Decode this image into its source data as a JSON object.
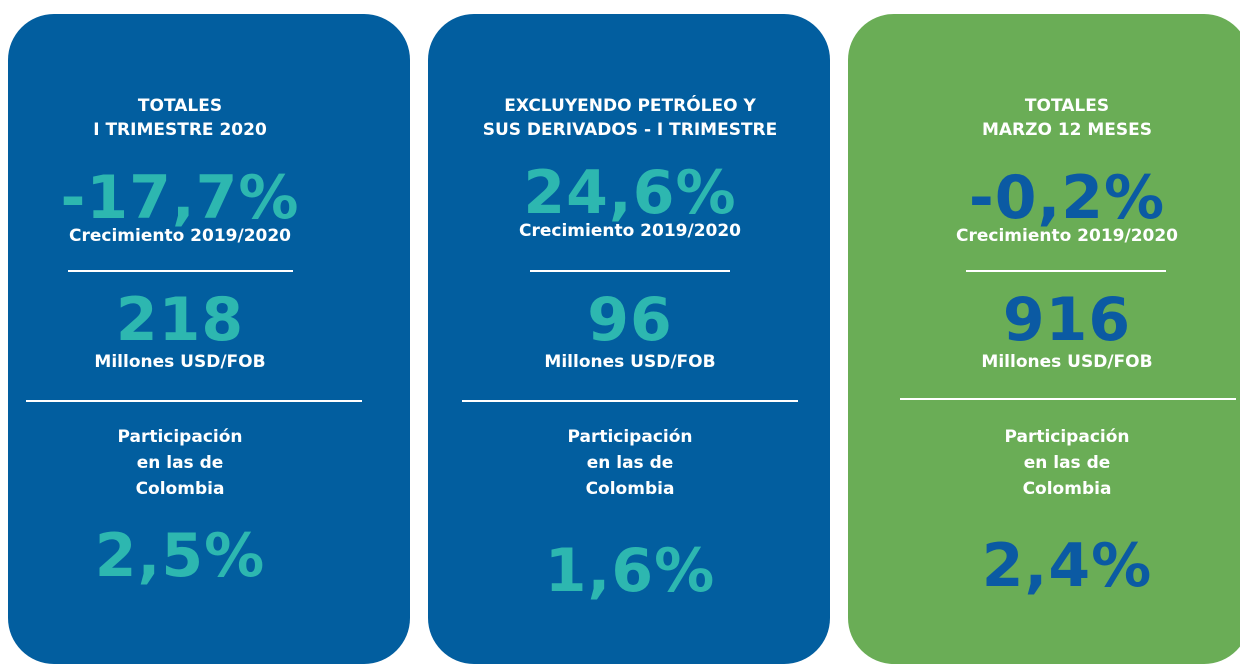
{
  "cards": [
    {
      "title": [
        "TOTALES",
        "I TRIMESTRE 2020"
      ],
      "growth": "-17,7%",
      "growth_label": "Crecimiento 2019/2020",
      "amount": "218",
      "amount_label": "Millones USD/FOB",
      "share_label": [
        "Participación",
        "en las de",
        "Colombia"
      ],
      "share": "2,5%"
    },
    {
      "title": [
        "EXCLUYENDO PETRÓLEO Y",
        "SUS DERIVADOS - I TRIMESTRE"
      ],
      "growth": "24,6%",
      "growth_label": "Crecimiento 2019/2020",
      "amount": "96",
      "amount_label": "Millones USD/FOB",
      "share_label": [
        "Participación",
        "en las de",
        "Colombia"
      ],
      "share": "1,6%"
    },
    {
      "title": [
        "TOTALES",
        "MARZO 12 MESES"
      ],
      "growth": "-0,2%",
      "growth_label": "Crecimiento 2019/2020",
      "amount": "916",
      "amount_label": "Millones USD/FOB",
      "share_label": [
        "Participación",
        "en las de",
        "Colombia"
      ],
      "share": "2,4%"
    }
  ]
}
